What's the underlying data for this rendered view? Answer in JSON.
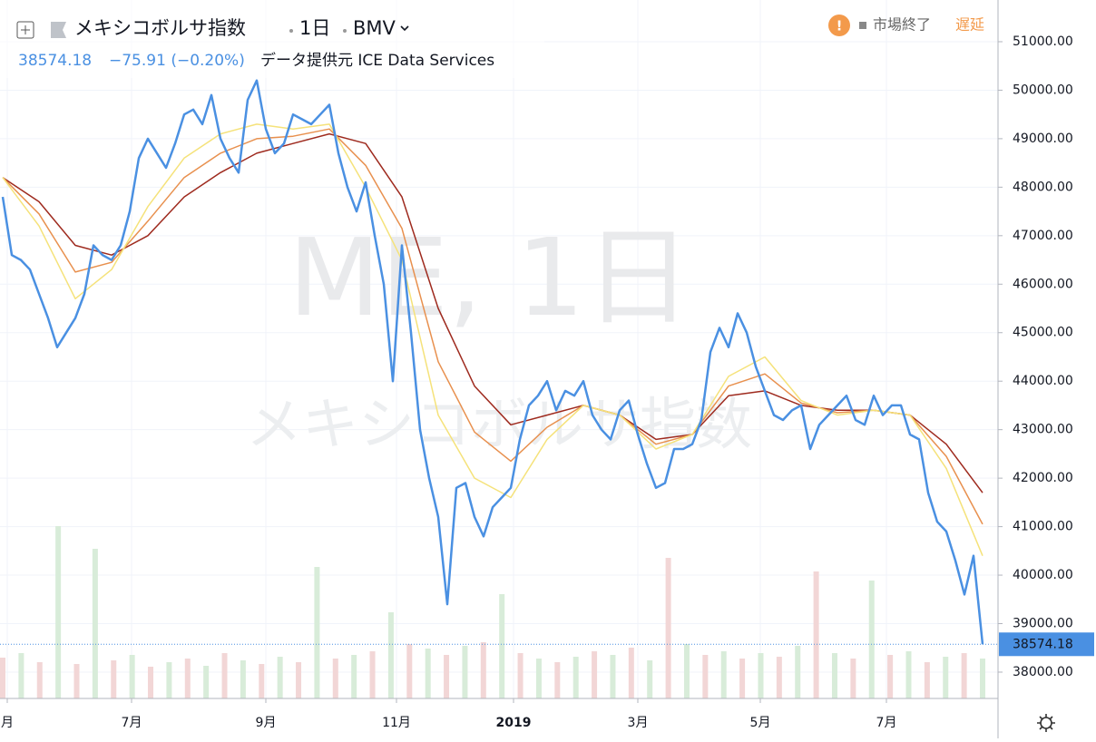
{
  "chart_data": {
    "type": "line",
    "title": "メキシコボルサ指数",
    "interval": "1日",
    "exchange": "BMV",
    "status": "市場終了",
    "delay": "遅延",
    "change": "−75.91 (−0.20%)",
    "source": "データ提供元 ICE Data Services",
    "watermark": "ME, 1日",
    "watermark_name": "メキシコボルサ指数",
    "series": [
      {
        "color": "#4a90e2",
        "values": [
          47800,
          46600,
          46500,
          46300,
          45800,
          45300,
          44700,
          45000,
          45300,
          45800,
          46800,
          46600,
          46500,
          46800,
          47500,
          48600,
          49000,
          48700,
          48400,
          48900,
          49500,
          49600,
          49300,
          49900,
          49000,
          48600,
          48300,
          49800,
          50200,
          49200,
          48700,
          48900,
          49500,
          49400,
          49300,
          49500,
          49700,
          48700,
          48000,
          47500,
          48100,
          47000,
          46000,
          44000,
          46800,
          45000,
          43000,
          42000,
          41200,
          39400,
          41800,
          41900,
          41200,
          40800,
          41400,
          41600,
          41800,
          42800,
          43500,
          43700,
          44000,
          43400,
          43800,
          43700,
          44000,
          43300,
          43000,
          42800,
          43400,
          43600,
          42900,
          42300,
          41800,
          41900,
          42600,
          42600,
          42700,
          43200,
          44600,
          45100,
          44700,
          45400,
          45000,
          44300,
          43800,
          43300,
          43200,
          43400,
          43500,
          42600,
          43100,
          43300,
          43500,
          43700,
          43200,
          43100,
          43700,
          43300,
          43500,
          43500,
          42900,
          42800,
          41700,
          41100,
          40900,
          40300,
          39600,
          40400,
          38574.18
        ]
      },
      {
        "color": "#f5e27a",
        "values": [
          48200,
          47200,
          45700,
          46300,
          47600,
          48600,
          49100,
          49300,
          49200,
          49300,
          48000,
          46500,
          43300,
          42000,
          41600,
          42800,
          43500,
          43300,
          42600,
          42900,
          44100,
          44500,
          43600,
          43300,
          43400,
          43300,
          42200,
          40400
        ]
      },
      {
        "color": "#e8904e",
        "values": [
          48200,
          47450,
          46250,
          46450,
          47300,
          48200,
          48700,
          49000,
          49050,
          49200,
          48450,
          47150,
          44400,
          42950,
          42350,
          43050,
          43500,
          43300,
          42700,
          42900,
          43900,
          44150,
          43550,
          43350,
          43400,
          43300,
          42450,
          41050
        ]
      },
      {
        "color": "#9e2a1e",
        "values": [
          48200,
          47700,
          46800,
          46600,
          47000,
          47800,
          48300,
          48700,
          48900,
          49100,
          48900,
          47800,
          45500,
          43900,
          43100,
          43300,
          43500,
          43300,
          42800,
          42900,
          43700,
          43800,
          43500,
          43400,
          43400,
          43300,
          42700,
          41700
        ]
      }
    ],
    "volume": {
      "colors": [
        "#f2d6d6",
        "#d8ecd9"
      ],
      "values": [
        45,
        50,
        40,
        190,
        38,
        165,
        42,
        48,
        35,
        40,
        44,
        36,
        50,
        42,
        38,
        46,
        40,
        145,
        44,
        48,
        52,
        95,
        60,
        55,
        48,
        58,
        62,
        115,
        50,
        44,
        40,
        46,
        52,
        48,
        56,
        42,
        155,
        60,
        48,
        52,
        44,
        50,
        46,
        58,
        140,
        50,
        44,
        130,
        48,
        52,
        40,
        46,
        50,
        44
      ]
    },
    "ylim": [
      37457,
      51860
    ],
    "yticks": [
      {
        "value": 38000,
        "label": "38000.00"
      },
      {
        "value": 39000,
        "label": "39000.00"
      },
      {
        "value": 40000,
        "label": "40000.00"
      },
      {
        "value": 41000,
        "label": "41000.00"
      },
      {
        "value": 42000,
        "label": "42000.00"
      },
      {
        "value": 43000,
        "label": "43000.00"
      },
      {
        "value": 44000,
        "label": "44000.00"
      },
      {
        "value": 45000,
        "label": "45000.00"
      },
      {
        "value": 46000,
        "label": "46000.00"
      },
      {
        "value": 47000,
        "label": "47000.00"
      },
      {
        "value": 48000,
        "label": "48000.00"
      },
      {
        "value": 49000,
        "label": "49000.00"
      },
      {
        "value": 50000,
        "label": "50000.00"
      },
      {
        "value": 51000,
        "label": "51000.00"
      }
    ],
    "xlim": [
      0,
      108
    ],
    "xticks": [
      {
        "value": 0.5,
        "label": "月"
      },
      {
        "value": 14.2,
        "label": "7月"
      },
      {
        "value": 29,
        "label": "9月"
      },
      {
        "value": 43.4,
        "label": "11月"
      },
      {
        "value": 56.3,
        "label": "2019"
      },
      {
        "value": 70,
        "label": "3月"
      },
      {
        "value": 83.5,
        "label": "5月"
      },
      {
        "value": 97.4,
        "label": "7月"
      }
    ],
    "grid": true
  }
}
